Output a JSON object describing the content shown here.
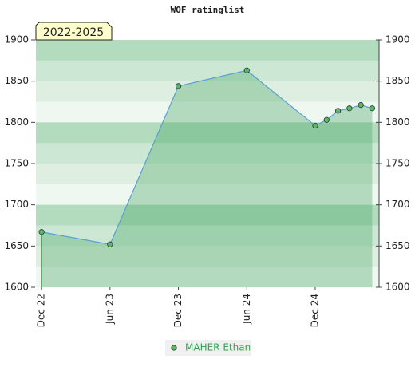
{
  "chart_data": {
    "type": "line",
    "title": "WOF ratinglist",
    "badge": "2022-2025",
    "x": [
      0,
      6,
      12,
      18,
      24,
      25,
      26,
      27,
      28,
      29
    ],
    "xlim": [
      -0.5,
      29.6
    ],
    "xticks": [
      {
        "value": 0,
        "label": "Dec 22"
      },
      {
        "value": 6,
        "label": "Jun 23"
      },
      {
        "value": 12,
        "label": "Dec 23"
      },
      {
        "value": 18,
        "label": "Jun 24"
      },
      {
        "value": 24,
        "label": "Dec 24"
      }
    ],
    "series": [
      {
        "name": "MAHER Ethan",
        "color": "#5a9fd4",
        "marker_color": "#5cb85c",
        "values": [
          1667,
          1652,
          1844,
          1863,
          1796,
          1803,
          1814,
          1817,
          1821,
          1817
        ]
      }
    ],
    "ylim": [
      1600,
      1900
    ],
    "yticks": [
      1600,
      1650,
      1700,
      1750,
      1800,
      1850,
      1900
    ],
    "y2lim": [
      1600,
      1900
    ],
    "y2ticks": [
      1600,
      1650,
      1700,
      1750,
      1800,
      1850,
      1900
    ]
  }
}
